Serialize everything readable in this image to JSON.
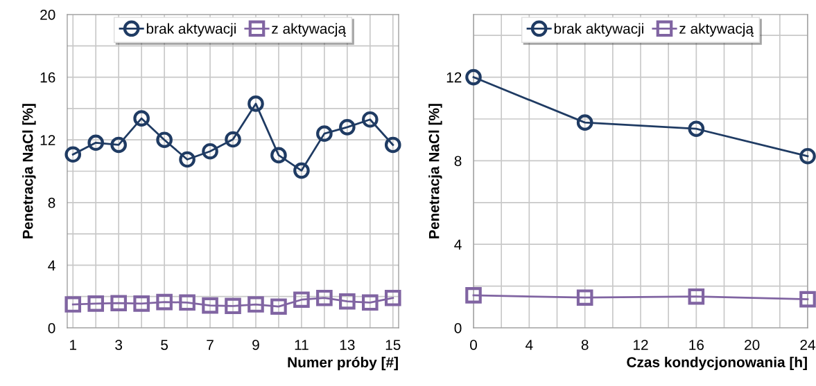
{
  "chart_data": [
    {
      "type": "line",
      "xlabel": "Numer próby [#]",
      "ylabel": "Penetracja NaCl [%]",
      "x": [
        1,
        2,
        3,
        4,
        5,
        6,
        7,
        8,
        9,
        10,
        11,
        12,
        13,
        14,
        15
      ],
      "series": [
        {
          "name": "brak aktywacji",
          "color": "#1f3b63",
          "marker": "circle",
          "values": [
            11.07,
            11.82,
            11.68,
            13.37,
            12.0,
            10.75,
            11.27,
            12.03,
            14.31,
            11.02,
            10.04,
            12.4,
            12.81,
            13.3,
            11.68
          ]
        },
        {
          "name": "z aktywacją",
          "color": "#8064a2",
          "marker": "square",
          "values": [
            1.5,
            1.55,
            1.58,
            1.55,
            1.65,
            1.62,
            1.43,
            1.4,
            1.5,
            1.36,
            1.8,
            1.91,
            1.69,
            1.62,
            1.91
          ]
        }
      ],
      "xlim": [
        0.75,
        15.25
      ],
      "xticks": [
        1,
        {
          "value": 2,
          "label": null
        },
        3,
        {
          "value": 4,
          "label": null
        },
        5,
        {
          "value": 6,
          "label": null
        },
        7,
        {
          "value": 8,
          "label": null
        },
        9,
        {
          "value": 10,
          "label": null
        },
        11,
        {
          "value": 12,
          "label": null
        },
        13,
        {
          "value": 14,
          "label": null
        },
        15
      ],
      "ylim": [
        0,
        20
      ],
      "yticks": [
        0,
        {
          "value": 2,
          "label": null
        },
        4,
        {
          "value": 6,
          "label": null
        },
        8,
        {
          "value": 10,
          "label": null
        },
        12,
        {
          "value": 14,
          "label": null
        },
        16,
        {
          "value": 18,
          "label": null
        },
        20
      ],
      "grid": true,
      "legend": "top"
    },
    {
      "type": "line",
      "xlabel": "Czas kondycjonowania [h]",
      "ylabel": "Penetracja NaCl [%]",
      "x": [
        0,
        8,
        16,
        24
      ],
      "series": [
        {
          "name": "brak aktywacji",
          "color": "#1f3b63",
          "marker": "circle",
          "values": [
            12.0,
            9.83,
            9.53,
            8.22
          ]
        },
        {
          "name": "z aktywacją",
          "color": "#8064a2",
          "marker": "square",
          "values": [
            1.56,
            1.45,
            1.5,
            1.37
          ]
        }
      ],
      "xlim": [
        0,
        24
      ],
      "xticks": [
        0,
        {
          "value": 2,
          "label": null
        },
        4,
        {
          "value": 6,
          "label": null
        },
        8,
        {
          "value": 10,
          "label": null
        },
        12,
        {
          "value": 14,
          "label": null
        },
        16,
        {
          "value": 18,
          "label": null
        },
        20,
        {
          "value": 22,
          "label": null
        },
        24
      ],
      "ylim": [
        0,
        15
      ],
      "yticks": [
        0,
        {
          "value": 2,
          "label": null
        },
        4,
        {
          "value": 6,
          "label": null
        },
        8,
        {
          "value": 10,
          "label": null
        },
        12,
        {
          "value": 14,
          "label": null
        }
      ],
      "grid": true,
      "legend": "top"
    }
  ]
}
